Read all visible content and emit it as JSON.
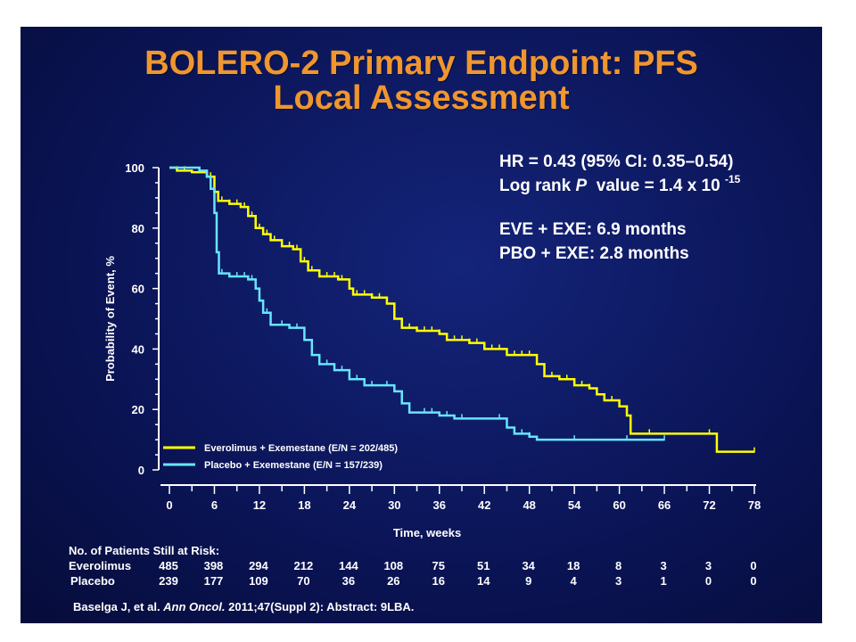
{
  "title": {
    "line1": "BOLERO-2 Primary Endpoint: PFS",
    "line2": "Local Assessment"
  },
  "stats": {
    "hr": "HR = 0.43 (95% CI: 0.35–0.54)",
    "logrank_prefix": "Log rank ",
    "logrank_p": "P",
    "logrank_value": "  value = 1.4 x 10 ",
    "logrank_exp": "-15",
    "eve": "EVE + EXE: 6.9 months",
    "pbo": "PBO + EXE: 2.8 months"
  },
  "colors": {
    "everolimus": "#ffff00",
    "placebo": "#66e6ff",
    "title": "#f0962e",
    "background": "#0b1558"
  },
  "chart_data": {
    "type": "line",
    "title": "",
    "xlabel": "Time, weeks",
    "ylabel": "Probability of Event, %",
    "xlim": [
      0,
      78
    ],
    "ylim": [
      0,
      100
    ],
    "xticks": [
      0,
      6,
      12,
      18,
      24,
      30,
      36,
      42,
      48,
      54,
      60,
      66,
      72,
      78
    ],
    "yticks": [
      0,
      20,
      40,
      60,
      80,
      100
    ],
    "legend_position": "bottom-left",
    "series": [
      {
        "name": "Everolimus + Exemestane (E/N = 202/485)",
        "color": "#ffff00",
        "points": [
          [
            0,
            100
          ],
          [
            1,
            99
          ],
          [
            3,
            98.5
          ],
          [
            5,
            97
          ],
          [
            6,
            92
          ],
          [
            6.5,
            89
          ],
          [
            8,
            88
          ],
          [
            9.5,
            87
          ],
          [
            10.5,
            84
          ],
          [
            11.5,
            80
          ],
          [
            12.5,
            78
          ],
          [
            13.5,
            76
          ],
          [
            15,
            74
          ],
          [
            16.5,
            73
          ],
          [
            17.5,
            69
          ],
          [
            18.5,
            66
          ],
          [
            20,
            64
          ],
          [
            22.5,
            63
          ],
          [
            24,
            60
          ],
          [
            24.5,
            58
          ],
          [
            27,
            57
          ],
          [
            29,
            55
          ],
          [
            30,
            50
          ],
          [
            31,
            47
          ],
          [
            33,
            46
          ],
          [
            36,
            45
          ],
          [
            37,
            43
          ],
          [
            40,
            42
          ],
          [
            42,
            40
          ],
          [
            45,
            38
          ],
          [
            49,
            35
          ],
          [
            50,
            31
          ],
          [
            52,
            30
          ],
          [
            54,
            28
          ],
          [
            56,
            27
          ],
          [
            57,
            25
          ],
          [
            58,
            23
          ],
          [
            60,
            21
          ],
          [
            61,
            18
          ],
          [
            61.5,
            12
          ],
          [
            66,
            12
          ],
          [
            72,
            12
          ],
          [
            73,
            6
          ],
          [
            78,
            6
          ]
        ],
        "censor_x": [
          1,
          2,
          4,
          5,
          5.5,
          6,
          7,
          8,
          9,
          10,
          11,
          12,
          13,
          14,
          16,
          17,
          18,
          19,
          20,
          21,
          22,
          23,
          25,
          26,
          27,
          28,
          29,
          31,
          32,
          33,
          34,
          35,
          36,
          37,
          38,
          39,
          40,
          41,
          43,
          44,
          46,
          47,
          48,
          49,
          51,
          53,
          55,
          56,
          57,
          58,
          59,
          60,
          64,
          72,
          78
        ]
      },
      {
        "name": "Placebo + Exemestane (E/N = 157/239)",
        "color": "#66e6ff",
        "points": [
          [
            0,
            100
          ],
          [
            4,
            99
          ],
          [
            5,
            97
          ],
          [
            5.5,
            93
          ],
          [
            6,
            85
          ],
          [
            6.3,
            72
          ],
          [
            6.6,
            65
          ],
          [
            8,
            64
          ],
          [
            10.5,
            63
          ],
          [
            11.5,
            60
          ],
          [
            12,
            56
          ],
          [
            12.5,
            52
          ],
          [
            13.5,
            48
          ],
          [
            16,
            47
          ],
          [
            18,
            43
          ],
          [
            19,
            38
          ],
          [
            20,
            35
          ],
          [
            22,
            33
          ],
          [
            24,
            30
          ],
          [
            26,
            28
          ],
          [
            30,
            26
          ],
          [
            31,
            22
          ],
          [
            32,
            19
          ],
          [
            36,
            18
          ],
          [
            38,
            17
          ],
          [
            45,
            14
          ],
          [
            46,
            12
          ],
          [
            48,
            11
          ],
          [
            49,
            10
          ],
          [
            55,
            10
          ],
          [
            66,
            10
          ]
        ],
        "censor_x": [
          5,
          6,
          7,
          9,
          10,
          11,
          13,
          15,
          17,
          18,
          19,
          21,
          23,
          24,
          25,
          27,
          29,
          31,
          34,
          35,
          37,
          39,
          44,
          46,
          47,
          48,
          54,
          61,
          66
        ]
      }
    ]
  },
  "risk_table": {
    "header": "No. of Patients Still at Risk:",
    "rows": [
      {
        "label": "Everolimus",
        "values": [
          "485",
          "398",
          "294",
          "212",
          "144",
          "108",
          "75",
          "51",
          "34",
          "18",
          "8",
          "3",
          "3",
          "0"
        ]
      },
      {
        "label": "Placebo",
        "values": [
          "239",
          "177",
          "109",
          "70",
          "36",
          "26",
          "16",
          "14",
          "9",
          "4",
          "3",
          "1",
          "0",
          "0"
        ]
      }
    ]
  },
  "citation": {
    "authors": "Baselga J, et al. ",
    "journal": "Ann Oncol.",
    "rest": " 2011;47(Suppl 2): Abstract: 9LBA."
  }
}
